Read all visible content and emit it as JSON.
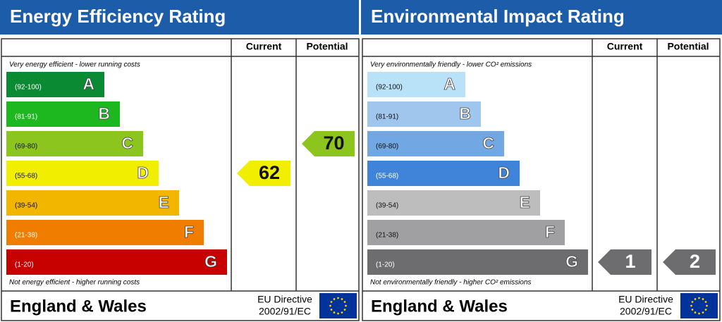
{
  "panels": [
    {
      "title": "Energy Efficiency Rating",
      "columns": [
        "Current",
        "Potential"
      ],
      "top_note": "Very energy efficient - lower running costs",
      "bottom_note": "Not energy efficient - higher running costs",
      "bands": [
        {
          "range": "(92-100)",
          "letter": "A",
          "color": "#0b8a34"
        },
        {
          "range": "(81-91)",
          "letter": "B",
          "color": "#1db71f"
        },
        {
          "range": "(69-80)",
          "letter": "C",
          "color": "#8cc51e"
        },
        {
          "range": "(55-68)",
          "letter": "D",
          "color": "#f2ee00"
        },
        {
          "range": "(39-54)",
          "letter": "E",
          "color": "#f2b600"
        },
        {
          "range": "(21-38)",
          "letter": "F",
          "color": "#f07d00"
        },
        {
          "range": "(1-20)",
          "letter": "G",
          "color": "#c70000"
        }
      ],
      "current": 62,
      "potential": 70,
      "footer": {
        "region": "England & Wales",
        "directive": "EU Directive",
        "code": "2002/91/EC"
      }
    },
    {
      "title": "Environmental Impact Rating",
      "columns": [
        "Current",
        "Potential"
      ],
      "top_note": "Very environmentally friendly - lower CO² emissions",
      "bottom_note": "Not environmentally friendly - higher CO² emissions",
      "bands": [
        {
          "range": "(92-100)",
          "letter": "A",
          "color": "#b9e2f8"
        },
        {
          "range": "(81-91)",
          "letter": "B",
          "color": "#a0c6ee"
        },
        {
          "range": "(69-80)",
          "letter": "C",
          "color": "#71a7e3"
        },
        {
          "range": "(55-68)",
          "letter": "D",
          "color": "#3f84d8"
        },
        {
          "range": "(39-54)",
          "letter": "E",
          "color": "#bdbdbd"
        },
        {
          "range": "(21-38)",
          "letter": "F",
          "color": "#a0a0a2"
        },
        {
          "range": "(1-20)",
          "letter": "G",
          "color": "#6d6d6f"
        }
      ],
      "current": 1,
      "potential": 2,
      "footer": {
        "region": "England & Wales",
        "directive": "EU Directive",
        "code": "2002/91/EC"
      }
    }
  ]
}
